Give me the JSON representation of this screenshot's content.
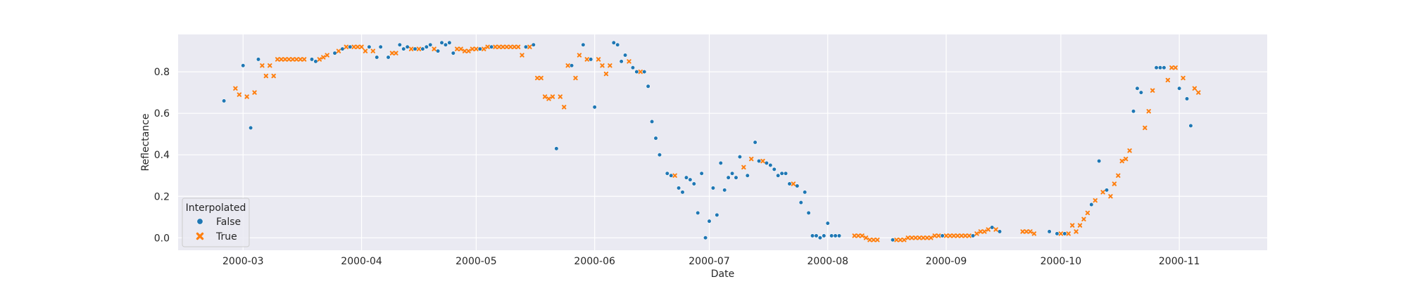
{
  "chart_data": {
    "type": "scatter",
    "title": "",
    "xlabel": "Date",
    "ylabel": "Reflectance",
    "x_type": "date",
    "xlim": [
      "2000-02-13",
      "2000-11-24"
    ],
    "ylim": [
      -0.06,
      0.98
    ],
    "xticks": [
      "2000-03-01",
      "2000-04-01",
      "2000-05-01",
      "2000-06-01",
      "2000-07-01",
      "2000-08-01",
      "2000-09-01",
      "2000-10-01",
      "2000-11-01"
    ],
    "xtick_labels": [
      "2000-03",
      "2000-04",
      "2000-05",
      "2000-06",
      "2000-07",
      "2000-08",
      "2000-09",
      "2000-10",
      "2000-11"
    ],
    "yticks": [
      0.0,
      0.2,
      0.4,
      0.6,
      0.8
    ],
    "ytick_labels": [
      "0.0",
      "0.2",
      "0.4",
      "0.6",
      "0.8"
    ],
    "grid": true,
    "style": "seaborn-darkgrid",
    "legend": {
      "title": "Interpolated",
      "placement": "lower-left",
      "entries": [
        "False",
        "True"
      ]
    },
    "colors": {
      "background": "#eaeaf2",
      "grid": "#ffffff",
      "series_false": "#1f77b4",
      "series_true": "#ff7f0e"
    },
    "series": [
      {
        "name": "False",
        "marker": "circle",
        "points": [
          [
            "2000-02-25",
            0.66
          ],
          [
            "2000-03-01",
            0.83
          ],
          [
            "2000-03-03",
            0.53
          ],
          [
            "2000-03-05",
            0.86
          ],
          [
            "2000-03-19",
            0.86
          ],
          [
            "2000-03-20",
            0.85
          ],
          [
            "2000-03-25",
            0.89
          ],
          [
            "2000-03-27",
            0.91
          ],
          [
            "2000-03-29",
            0.92
          ],
          [
            "2000-04-03",
            0.92
          ],
          [
            "2000-04-05",
            0.87
          ],
          [
            "2000-04-06",
            0.92
          ],
          [
            "2000-04-08",
            0.87
          ],
          [
            "2000-04-11",
            0.93
          ],
          [
            "2000-04-12",
            0.91
          ],
          [
            "2000-04-13",
            0.92
          ],
          [
            "2000-04-15",
            0.91
          ],
          [
            "2000-04-17",
            0.91
          ],
          [
            "2000-04-18",
            0.92
          ],
          [
            "2000-04-19",
            0.93
          ],
          [
            "2000-04-21",
            0.9
          ],
          [
            "2000-04-22",
            0.94
          ],
          [
            "2000-04-23",
            0.93
          ],
          [
            "2000-04-24",
            0.94
          ],
          [
            "2000-04-25",
            0.89
          ],
          [
            "2000-05-02",
            0.91
          ],
          [
            "2000-05-05",
            0.92
          ],
          [
            "2000-05-14",
            0.92
          ],
          [
            "2000-05-16",
            0.93
          ],
          [
            "2000-05-22",
            0.43
          ],
          [
            "2000-05-26",
            0.83
          ],
          [
            "2000-05-29",
            0.93
          ],
          [
            "2000-05-31",
            0.86
          ],
          [
            "2000-06-01",
            0.63
          ],
          [
            "2000-06-06",
            0.94
          ],
          [
            "2000-06-07",
            0.93
          ],
          [
            "2000-06-08",
            0.85
          ],
          [
            "2000-06-09",
            0.88
          ],
          [
            "2000-06-11",
            0.82
          ],
          [
            "2000-06-12",
            0.8
          ],
          [
            "2000-06-14",
            0.8
          ],
          [
            "2000-06-15",
            0.73
          ],
          [
            "2000-06-16",
            0.56
          ],
          [
            "2000-06-17",
            0.48
          ],
          [
            "2000-06-18",
            0.4
          ],
          [
            "2000-06-20",
            0.31
          ],
          [
            "2000-06-21",
            0.3
          ],
          [
            "2000-06-23",
            0.24
          ],
          [
            "2000-06-24",
            0.22
          ],
          [
            "2000-06-25",
            0.29
          ],
          [
            "2000-06-26",
            0.28
          ],
          [
            "2000-06-27",
            0.26
          ],
          [
            "2000-06-28",
            0.12
          ],
          [
            "2000-06-29",
            0.31
          ],
          [
            "2000-06-30",
            0.0
          ],
          [
            "2000-07-01",
            0.08
          ],
          [
            "2000-07-02",
            0.24
          ],
          [
            "2000-07-03",
            0.11
          ],
          [
            "2000-07-04",
            0.36
          ],
          [
            "2000-07-05",
            0.23
          ],
          [
            "2000-07-06",
            0.29
          ],
          [
            "2000-07-07",
            0.31
          ],
          [
            "2000-07-08",
            0.29
          ],
          [
            "2000-07-09",
            0.39
          ],
          [
            "2000-07-11",
            0.3
          ],
          [
            "2000-07-13",
            0.46
          ],
          [
            "2000-07-14",
            0.37
          ],
          [
            "2000-07-16",
            0.36
          ],
          [
            "2000-07-17",
            0.35
          ],
          [
            "2000-07-18",
            0.33
          ],
          [
            "2000-07-19",
            0.3
          ],
          [
            "2000-07-20",
            0.31
          ],
          [
            "2000-07-21",
            0.31
          ],
          [
            "2000-07-22",
            0.26
          ],
          [
            "2000-07-24",
            0.25
          ],
          [
            "2000-07-25",
            0.17
          ],
          [
            "2000-07-26",
            0.22
          ],
          [
            "2000-07-27",
            0.12
          ],
          [
            "2000-07-28",
            0.01
          ],
          [
            "2000-07-29",
            0.01
          ],
          [
            "2000-07-30",
            0.0
          ],
          [
            "2000-07-31",
            0.01
          ],
          [
            "2000-08-01",
            0.07
          ],
          [
            "2000-08-02",
            0.01
          ],
          [
            "2000-08-03",
            0.01
          ],
          [
            "2000-08-04",
            0.01
          ],
          [
            "2000-08-18",
            -0.01
          ],
          [
            "2000-08-31",
            0.01
          ],
          [
            "2000-09-08",
            0.01
          ],
          [
            "2000-09-13",
            0.05
          ],
          [
            "2000-09-15",
            0.03
          ],
          [
            "2000-09-28",
            0.03
          ],
          [
            "2000-09-30",
            0.02
          ],
          [
            "2000-10-02",
            0.02
          ],
          [
            "2000-10-09",
            0.16
          ],
          [
            "2000-10-11",
            0.37
          ],
          [
            "2000-10-13",
            0.23
          ],
          [
            "2000-10-20",
            0.61
          ],
          [
            "2000-10-21",
            0.72
          ],
          [
            "2000-10-22",
            0.7
          ],
          [
            "2000-10-26",
            0.82
          ],
          [
            "2000-10-27",
            0.82
          ],
          [
            "2000-10-28",
            0.82
          ],
          [
            "2000-11-01",
            0.72
          ],
          [
            "2000-11-03",
            0.67
          ],
          [
            "2000-11-04",
            0.54
          ]
        ]
      },
      {
        "name": "True",
        "marker": "x",
        "points": [
          [
            "2000-02-28",
            0.72
          ],
          [
            "2000-02-29",
            0.69
          ],
          [
            "2000-03-02",
            0.68
          ],
          [
            "2000-03-04",
            0.7
          ],
          [
            "2000-03-06",
            0.83
          ],
          [
            "2000-03-07",
            0.78
          ],
          [
            "2000-03-08",
            0.83
          ],
          [
            "2000-03-09",
            0.78
          ],
          [
            "2000-03-10",
            0.86
          ],
          [
            "2000-03-11",
            0.86
          ],
          [
            "2000-03-12",
            0.86
          ],
          [
            "2000-03-13",
            0.86
          ],
          [
            "2000-03-14",
            0.86
          ],
          [
            "2000-03-15",
            0.86
          ],
          [
            "2000-03-16",
            0.86
          ],
          [
            "2000-03-17",
            0.86
          ],
          [
            "2000-03-21",
            0.86
          ],
          [
            "2000-03-22",
            0.87
          ],
          [
            "2000-03-23",
            0.88
          ],
          [
            "2000-03-26",
            0.9
          ],
          [
            "2000-03-28",
            0.92
          ],
          [
            "2000-03-30",
            0.92
          ],
          [
            "2000-03-31",
            0.92
          ],
          [
            "2000-04-01",
            0.92
          ],
          [
            "2000-04-02",
            0.9
          ],
          [
            "2000-04-04",
            0.9
          ],
          [
            "2000-04-09",
            0.89
          ],
          [
            "2000-04-10",
            0.89
          ],
          [
            "2000-04-14",
            0.91
          ],
          [
            "2000-04-16",
            0.91
          ],
          [
            "2000-04-20",
            0.91
          ],
          [
            "2000-04-26",
            0.91
          ],
          [
            "2000-04-27",
            0.91
          ],
          [
            "2000-04-28",
            0.9
          ],
          [
            "2000-04-29",
            0.9
          ],
          [
            "2000-04-30",
            0.91
          ],
          [
            "2000-05-01",
            0.91
          ],
          [
            "2000-05-03",
            0.91
          ],
          [
            "2000-05-04",
            0.92
          ],
          [
            "2000-05-06",
            0.92
          ],
          [
            "2000-05-07",
            0.92
          ],
          [
            "2000-05-08",
            0.92
          ],
          [
            "2000-05-09",
            0.92
          ],
          [
            "2000-05-10",
            0.92
          ],
          [
            "2000-05-11",
            0.92
          ],
          [
            "2000-05-12",
            0.92
          ],
          [
            "2000-05-13",
            0.88
          ],
          [
            "2000-05-15",
            0.92
          ],
          [
            "2000-05-17",
            0.77
          ],
          [
            "2000-05-18",
            0.77
          ],
          [
            "2000-05-19",
            0.68
          ],
          [
            "2000-05-20",
            0.67
          ],
          [
            "2000-05-21",
            0.68
          ],
          [
            "2000-05-23",
            0.68
          ],
          [
            "2000-05-24",
            0.63
          ],
          [
            "2000-05-25",
            0.83
          ],
          [
            "2000-05-27",
            0.77
          ],
          [
            "2000-05-28",
            0.88
          ],
          [
            "2000-05-30",
            0.86
          ],
          [
            "2000-06-02",
            0.86
          ],
          [
            "2000-06-03",
            0.83
          ],
          [
            "2000-06-04",
            0.79
          ],
          [
            "2000-06-05",
            0.83
          ],
          [
            "2000-06-10",
            0.85
          ],
          [
            "2000-06-13",
            0.8
          ],
          [
            "2000-06-22",
            0.3
          ],
          [
            "2000-07-10",
            0.34
          ],
          [
            "2000-07-12",
            0.38
          ],
          [
            "2000-07-15",
            0.37
          ],
          [
            "2000-07-23",
            0.26
          ],
          [
            "2000-08-08",
            0.01
          ],
          [
            "2000-08-09",
            0.01
          ],
          [
            "2000-08-10",
            0.01
          ],
          [
            "2000-08-11",
            0.0
          ],
          [
            "2000-08-12",
            -0.01
          ],
          [
            "2000-08-13",
            -0.01
          ],
          [
            "2000-08-14",
            -0.01
          ],
          [
            "2000-08-19",
            -0.01
          ],
          [
            "2000-08-20",
            -0.01
          ],
          [
            "2000-08-21",
            -0.01
          ],
          [
            "2000-08-22",
            0.0
          ],
          [
            "2000-08-23",
            0.0
          ],
          [
            "2000-08-24",
            0.0
          ],
          [
            "2000-08-25",
            0.0
          ],
          [
            "2000-08-26",
            0.0
          ],
          [
            "2000-08-27",
            0.0
          ],
          [
            "2000-08-28",
            0.0
          ],
          [
            "2000-08-29",
            0.01
          ],
          [
            "2000-08-30",
            0.01
          ],
          [
            "2000-09-01",
            0.01
          ],
          [
            "2000-09-02",
            0.01
          ],
          [
            "2000-09-03",
            0.01
          ],
          [
            "2000-09-04",
            0.01
          ],
          [
            "2000-09-05",
            0.01
          ],
          [
            "2000-09-06",
            0.01
          ],
          [
            "2000-09-07",
            0.01
          ],
          [
            "2000-09-09",
            0.02
          ],
          [
            "2000-09-10",
            0.03
          ],
          [
            "2000-09-11",
            0.03
          ],
          [
            "2000-09-12",
            0.04
          ],
          [
            "2000-09-14",
            0.04
          ],
          [
            "2000-09-21",
            0.03
          ],
          [
            "2000-09-22",
            0.03
          ],
          [
            "2000-09-23",
            0.03
          ],
          [
            "2000-09-24",
            0.02
          ],
          [
            "2000-10-01",
            0.02
          ],
          [
            "2000-10-03",
            0.02
          ],
          [
            "2000-10-04",
            0.06
          ],
          [
            "2000-10-05",
            0.03
          ],
          [
            "2000-10-06",
            0.06
          ],
          [
            "2000-10-07",
            0.09
          ],
          [
            "2000-10-08",
            0.12
          ],
          [
            "2000-10-10",
            0.18
          ],
          [
            "2000-10-12",
            0.22
          ],
          [
            "2000-10-14",
            0.2
          ],
          [
            "2000-10-15",
            0.26
          ],
          [
            "2000-10-16",
            0.3
          ],
          [
            "2000-10-17",
            0.37
          ],
          [
            "2000-10-18",
            0.38
          ],
          [
            "2000-10-19",
            0.42
          ],
          [
            "2000-10-23",
            0.53
          ],
          [
            "2000-10-24",
            0.61
          ],
          [
            "2000-10-25",
            0.71
          ],
          [
            "2000-10-29",
            0.76
          ],
          [
            "2000-10-30",
            0.82
          ],
          [
            "2000-10-31",
            0.82
          ],
          [
            "2000-11-02",
            0.77
          ],
          [
            "2000-11-05",
            0.72
          ],
          [
            "2000-11-06",
            0.7
          ]
        ]
      }
    ]
  }
}
